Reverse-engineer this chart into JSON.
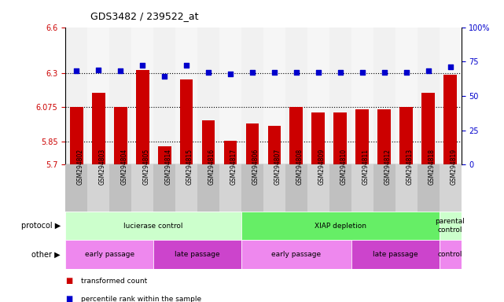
{
  "title": "GDS3482 / 239522_at",
  "samples": [
    "GSM294802",
    "GSM294803",
    "GSM294804",
    "GSM294805",
    "GSM294814",
    "GSM294815",
    "GSM294816",
    "GSM294817",
    "GSM294806",
    "GSM294807",
    "GSM294808",
    "GSM294809",
    "GSM294810",
    "GSM294811",
    "GSM294812",
    "GSM294813",
    "GSM294818",
    "GSM294819"
  ],
  "bar_values": [
    6.075,
    6.17,
    6.075,
    6.32,
    5.82,
    6.26,
    5.99,
    5.855,
    5.97,
    5.955,
    6.075,
    6.04,
    6.04,
    6.06,
    6.06,
    6.075,
    6.17,
    6.29
  ],
  "dot_values": [
    68,
    69,
    68,
    72,
    64,
    72,
    67,
    66,
    67,
    67,
    67,
    67,
    67,
    67,
    67,
    67,
    68,
    71
  ],
  "ylim_left": [
    5.7,
    6.6
  ],
  "ylim_right": [
    0,
    100
  ],
  "yticks_left": [
    5.7,
    5.85,
    6.075,
    6.3,
    6.6
  ],
  "yticks_right": [
    0,
    25,
    50,
    75,
    100
  ],
  "ytick_labels_left": [
    "5.7",
    "5.85",
    "6.075",
    "6.3",
    "6.6"
  ],
  "ytick_labels_right": [
    "0",
    "25",
    "50",
    "75",
    "100%"
  ],
  "hlines": [
    5.85,
    6.075,
    6.3
  ],
  "bar_color": "#cc0000",
  "dot_color": "#0000cc",
  "bar_width": 0.6,
  "protocol_groups": [
    {
      "label": "lucierase control",
      "start": 0,
      "end": 8,
      "color": "#ccffcc"
    },
    {
      "label": "XIAP depletion",
      "start": 8,
      "end": 17,
      "color": "#66ee66"
    },
    {
      "label": "parental\ncontrol",
      "start": 17,
      "end": 18,
      "color": "#ccffcc"
    }
  ],
  "other_groups": [
    {
      "label": "early passage",
      "start": 0,
      "end": 4,
      "color": "#ee88ee"
    },
    {
      "label": "late passage",
      "start": 4,
      "end": 8,
      "color": "#cc44cc"
    },
    {
      "label": "early passage",
      "start": 8,
      "end": 13,
      "color": "#ee88ee"
    },
    {
      "label": "late passage",
      "start": 13,
      "end": 17,
      "color": "#cc44cc"
    },
    {
      "label": "control",
      "start": 17,
      "end": 18,
      "color": "#ee88ee"
    }
  ],
  "legend_items": [
    {
      "label": "transformed count",
      "color": "#cc0000"
    },
    {
      "label": "percentile rank within the sample",
      "color": "#0000cc"
    }
  ],
  "xlabel_color": "#cc0000",
  "right_axis_color": "#0000cc",
  "bg_color": "#ffffff"
}
